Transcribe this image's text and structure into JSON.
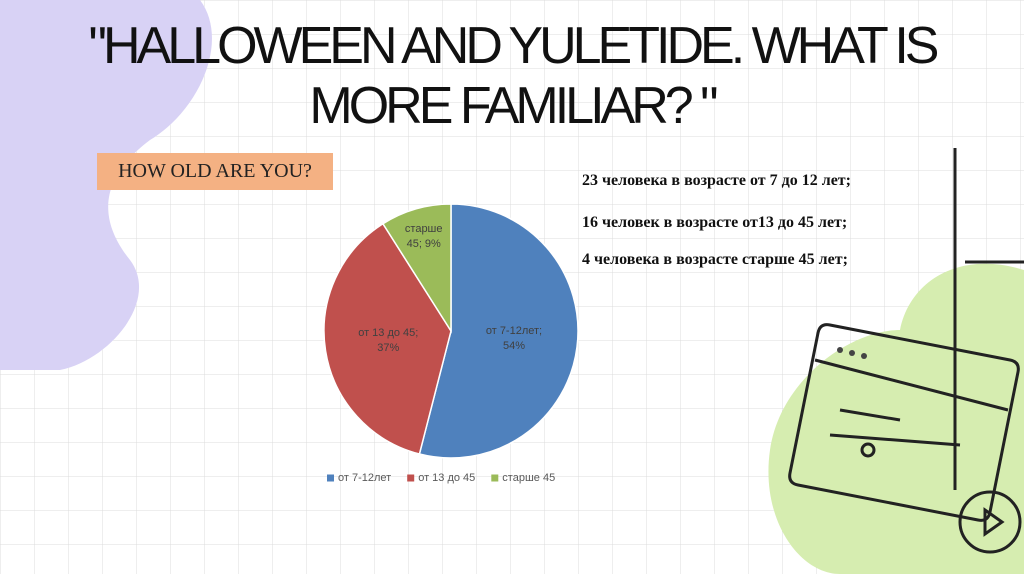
{
  "slide": {
    "title": "\"HALLOWEEN AND YULETIDE. WHAT IS MORE FAMILIAR? \"",
    "subtitle": "HOW OLD ARE YOU?",
    "notes": [
      "23 человека в возрасте от 7 до 12 лет;",
      "16 человек в возрасте от13 до 45 лет;",
      "4 человека в возрасте старше 45 лет;"
    ]
  },
  "chart_data": {
    "type": "pie",
    "categories": [
      "от 7-12лет",
      "от 13 до 45",
      "старше 45"
    ],
    "values": [
      54,
      37,
      9
    ],
    "value_labels": [
      "от 7-12лет; 54%",
      "от 13 до 45; 37%",
      "старше 45; 9%"
    ],
    "colors": [
      "#4f81bd",
      "#c0504d",
      "#9bbb59"
    ],
    "legend": "bottom"
  }
}
